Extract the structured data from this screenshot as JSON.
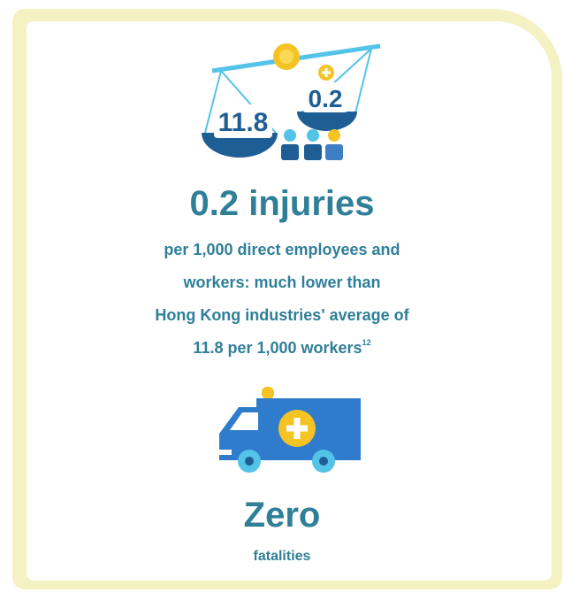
{
  "scale_labels": {
    "left": "11.8",
    "right": "0.2"
  },
  "headline": "0.2 injuries",
  "description": [
    "per 1,000 direct employees and",
    "workers: much lower than",
    "Hong Kong industries' average of",
    "11.8 per 1,000 workers"
  ],
  "footnote": "12",
  "fatality_headline": "Zero",
  "fatality_label": "fatalities"
}
